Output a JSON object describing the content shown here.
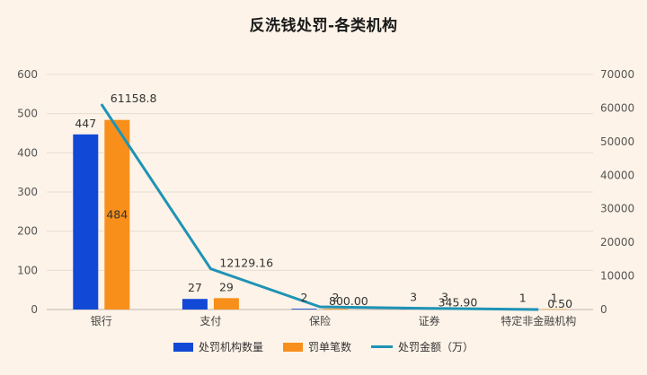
{
  "chart_data": {
    "type": "bar",
    "title": "反洗钱处罚-各类机构",
    "categories": [
      "银行",
      "支付",
      "保险",
      "证券",
      "特定非金融机构"
    ],
    "series": [
      {
        "name": "处罚机构数量",
        "kind": "bar",
        "axis": "left",
        "color": "#1149d6",
        "values": [
          447,
          27,
          2,
          3,
          1
        ],
        "labels": [
          "447",
          "27",
          "2",
          "3",
          "1"
        ]
      },
      {
        "name": "罚单笔数",
        "kind": "bar",
        "axis": "left",
        "color": "#f88f1b",
        "values": [
          484,
          29,
          2,
          3,
          1
        ],
        "labels": [
          "484",
          "29",
          "2",
          "3",
          "1"
        ]
      },
      {
        "name": "处罚金额（万）",
        "kind": "line",
        "axis": "right",
        "color": "#1f93b5",
        "values": [
          61158.8,
          12129.16,
          800.0,
          345.9,
          0.5
        ],
        "labels": [
          "61158.8",
          "12129.16",
          "800.00",
          "345.90",
          "0.50"
        ]
      }
    ],
    "ylim": [
      0,
      600
    ],
    "yticks": [
      "0",
      "100",
      "200",
      "300",
      "400",
      "500",
      "600"
    ],
    "y2lim": [
      0,
      70000
    ],
    "y2ticks": [
      "0",
      "10000",
      "20000",
      "30000",
      "40000",
      "50000",
      "60000",
      "70000"
    ],
    "grid": true,
    "legend_position": "bottom"
  }
}
